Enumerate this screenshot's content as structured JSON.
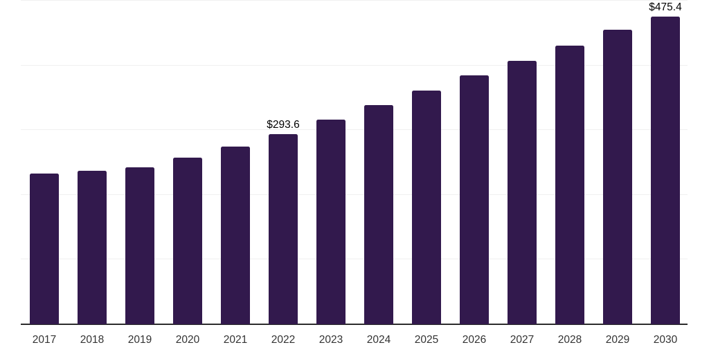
{
  "chart_data": {
    "type": "bar",
    "title": "",
    "xlabel": "",
    "ylabel": "",
    "categories": [
      "2017",
      "2018",
      "2019",
      "2020",
      "2021",
      "2022",
      "2023",
      "2024",
      "2025",
      "2026",
      "2027",
      "2028",
      "2029",
      "2030"
    ],
    "values": [
      232.6,
      237.1,
      242.3,
      257.3,
      274.2,
      293.6,
      316.3,
      339.1,
      361.5,
      384.3,
      407.3,
      431.0,
      454.8,
      475.4
    ],
    "point_labels": [
      "",
      "",
      "",
      "",
      "",
      "$293.6",
      "",
      "",
      "",
      "",
      "",
      "",
      "",
      "$475.4"
    ],
    "ylim": [
      0,
      500
    ],
    "gridline_values": [
      100,
      200,
      300,
      400,
      500
    ],
    "grid": "horizontal-only",
    "legend": "none",
    "y_tick_labels_visible": false,
    "colors": {
      "bar": "#32194d",
      "gridline": "#f0f0f0",
      "axis_line": "#2b2b2b",
      "value_label": "#000000",
      "tick_label": "#333333",
      "background": "#ffffff"
    }
  }
}
